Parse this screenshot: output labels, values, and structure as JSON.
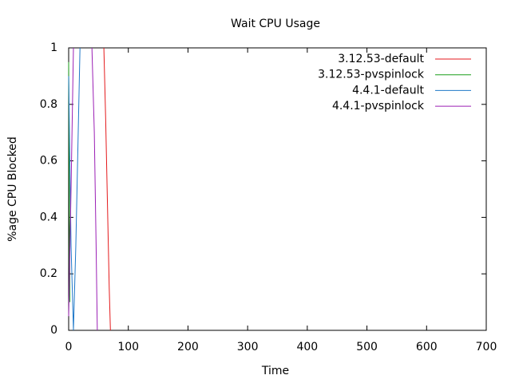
{
  "chart_data": {
    "type": "line",
    "title": "Wait CPU Usage",
    "x_label": "Time",
    "y_label": "%age CPU Blocked",
    "xlim": [
      0,
      700
    ],
    "xticks": [
      0,
      100,
      200,
      300,
      400,
      500,
      600,
      700
    ],
    "ylim": [
      0,
      1
    ],
    "yticks": [
      0,
      0.2,
      0.4,
      0.6,
      0.8,
      1
    ],
    "legend": "top-right",
    "series": [
      {
        "name": "3.12.53-default",
        "color": "#e41a1c",
        "x": [
          59,
          62,
          65,
          68,
          70
        ],
        "values": [
          1,
          0.75,
          0.45,
          0.15,
          0
        ]
      },
      {
        "name": "3.12.53-pvspinlock",
        "color": "#1a9e1a",
        "x": [
          0,
          1,
          2
        ],
        "values": [
          0.95,
          0.5,
          0.1
        ]
      },
      {
        "name": "4.4.1-default",
        "color": "#1f78c8",
        "x": [
          0,
          4,
          8,
          12,
          16,
          19
        ],
        "values": [
          0.9,
          0.3,
          0,
          0.3,
          0.7,
          1
        ]
      },
      {
        "name": "4.4.1-pvspinlock",
        "color": "#9b1fb5",
        "x": [
          0,
          4,
          8,
          null,
          39,
          43,
          46,
          48
        ],
        "values": [
          0.05,
          0.5,
          1,
          null,
          1,
          0.7,
          0.3,
          0
        ]
      }
    ]
  }
}
